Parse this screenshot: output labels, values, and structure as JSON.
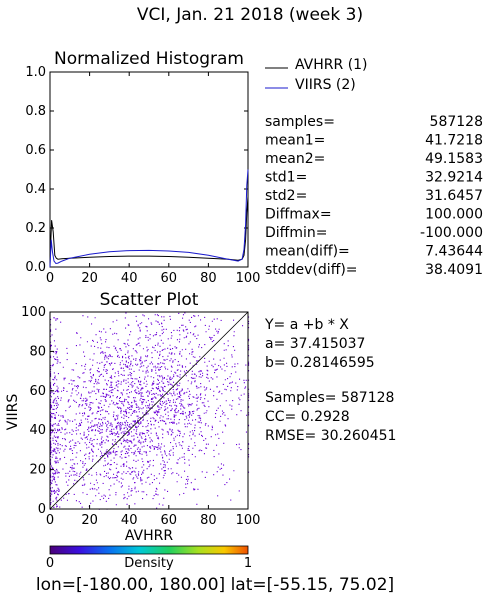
{
  "header": {
    "title": "VCI,  Jan. 21 2018 (week 3)"
  },
  "footer": {
    "range_text": "lon=[-180.00, 180.00] lat=[-55.15, 75.02]"
  },
  "colors": {
    "avhrr": "#000000",
    "viirs": "#1a1acd",
    "scatter": "#6a00d8",
    "background": "#ffffff"
  },
  "chart_data": [
    {
      "type": "line",
      "title": "Normalized Histogram",
      "xlim": [
        0,
        100
      ],
      "ylim": [
        0,
        1.0
      ],
      "x_ticks": [
        "0",
        "20",
        "40",
        "60",
        "80",
        "100"
      ],
      "y_ticks": [
        "0.0",
        "0.2",
        "0.4",
        "0.6",
        "0.8",
        "1.0"
      ],
      "series": [
        {
          "name": "AVHRR (1)",
          "x": [
            0,
            0.8,
            1.6,
            2.4,
            3.2,
            4,
            6,
            10,
            20,
            30,
            40,
            50,
            60,
            70,
            80,
            90,
            95,
            97,
            98,
            98.8,
            99.4,
            100
          ],
          "values": [
            0.02,
            0.24,
            0.18,
            0.06,
            0.045,
            0.04,
            0.042,
            0.045,
            0.05,
            0.054,
            0.056,
            0.056,
            0.054,
            0.05,
            0.045,
            0.04,
            0.035,
            0.04,
            0.06,
            0.14,
            0.28,
            0.36
          ]
        },
        {
          "name": "VIIRS (2)",
          "x": [
            0,
            0.6,
            1.2,
            2,
            3,
            4,
            6,
            10,
            20,
            30,
            40,
            50,
            60,
            70,
            80,
            90,
            95,
            97,
            98,
            98.8,
            99.4,
            100
          ],
          "values": [
            0.0,
            0.14,
            0.08,
            0.03,
            0.018,
            0.02,
            0.03,
            0.045,
            0.065,
            0.078,
            0.084,
            0.085,
            0.082,
            0.075,
            0.06,
            0.04,
            0.03,
            0.04,
            0.09,
            0.22,
            0.42,
            0.5
          ]
        }
      ],
      "legend": {
        "placement": "top-right",
        "entries": [
          "AVHRR (1)",
          "VIIRS (2)"
        ]
      },
      "stats": [
        {
          "label": "samples=",
          "value": "587128"
        },
        {
          "label": "mean1=",
          "value": "41.7218"
        },
        {
          "label": "mean2=",
          "value": "49.1583"
        },
        {
          "label": "std1=",
          "value": "32.9214"
        },
        {
          "label": "std2=",
          "value": "31.6457"
        },
        {
          "label": "Diffmax=",
          "value": "100.000"
        },
        {
          "label": "Diffmin=",
          "value": "-100.000"
        },
        {
          "label": "mean(diff)=",
          "value": "7.43644"
        },
        {
          "label": "stddev(diff)=",
          "value": "38.4091"
        }
      ]
    },
    {
      "type": "scatter",
      "title": "Scatter Plot",
      "xlabel": "AVHRR",
      "ylabel": "VIIRS",
      "xlim": [
        0,
        100
      ],
      "ylim": [
        0,
        100
      ],
      "x_ticks": [
        "0",
        "20",
        "40",
        "60",
        "80",
        "100"
      ],
      "y_ticks": [
        "0",
        "20",
        "40",
        "60",
        "80",
        "100"
      ],
      "samples": 587128,
      "regression": {
        "a": 37.415037,
        "b": 0.28146595
      },
      "annotations": {
        "equation": "Y= a +b * X",
        "a_text": "a= 37.415037",
        "b_text": "b= 0.28146595",
        "samples_text": "Samples= 587128",
        "cc_text": "CC=  0.2928",
        "rmse_text": "RMSE= 30.260451"
      },
      "one_to_one_line": true,
      "colorbar": {
        "label": "Density",
        "min_label": "0",
        "max_label": "1"
      }
    }
  ]
}
